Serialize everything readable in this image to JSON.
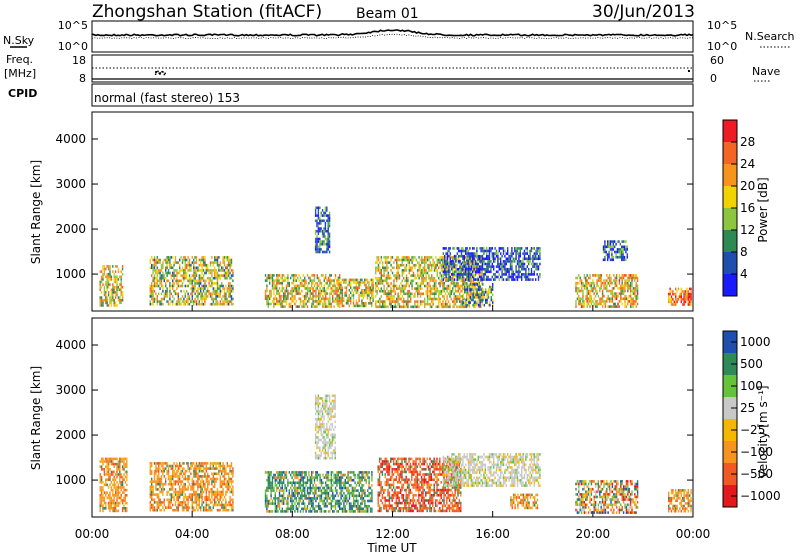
{
  "header": {
    "station": "Zhongshan Station (fitACF)",
    "beam": "Beam 01",
    "date": "30/Jun/2013"
  },
  "noise_panel": {
    "left_label": "N.Sky",
    "right_label": "N.Search",
    "ytick_top": "10^5",
    "ytick_bottom": "10^0"
  },
  "freq_panel": {
    "left_label_1": "Freq.",
    "left_label_2": "[MHz]",
    "right_label": "Nave",
    "left_ticks": [
      "18",
      "8"
    ],
    "right_ticks": [
      "60",
      "0"
    ]
  },
  "cpid_panel": {
    "label": "CPID",
    "mode_text": "normal (fast stereo) 153"
  },
  "colors": {
    "power_scale": [
      "#1a1aff",
      "#1f4fae",
      "#2d8a52",
      "#8cc63f",
      "#f2d200",
      "#f7941d",
      "#f26522",
      "#ed1c24"
    ],
    "velocity_scale": [
      "#e31a1c",
      "#f05a22",
      "#f7941d",
      "#f5b700",
      "#c8c8c8",
      "#66c23a",
      "#2f8a5a",
      "#1f4fae"
    ]
  },
  "chart_data": [
    {
      "type": "heatmap",
      "panel": "power",
      "ylabel": "Slant Range [km]",
      "ylim": [
        180,
        4600
      ],
      "yticks": [
        1000,
        2000,
        3000,
        4000
      ],
      "xlabel": "Time UT",
      "xlim_hours": [
        0,
        24
      ],
      "colorbar": {
        "label": "Power [dB]",
        "range": [
          0,
          32
        ],
        "ticks": [
          "4",
          "8",
          "12",
          "16",
          "20",
          "24",
          "28"
        ]
      },
      "echo_regions": [
        {
          "t": [
            0.3,
            1.2
          ],
          "r": [
            300,
            1200
          ],
          "level": 0.55
        },
        {
          "t": [
            2.3,
            5.6
          ],
          "r": [
            350,
            1400
          ],
          "level": 0.5
        },
        {
          "t": [
            6.9,
            9.9
          ],
          "r": [
            300,
            1000
          ],
          "level": 0.55
        },
        {
          "t": [
            8.9,
            9.5
          ],
          "r": [
            1500,
            2500
          ],
          "level": 0.2
        },
        {
          "t": [
            9.8,
            11.2
          ],
          "r": [
            300,
            900
          ],
          "level": 0.55
        },
        {
          "t": [
            11.3,
            15.6
          ],
          "r": [
            300,
            1400
          ],
          "level": 0.55
        },
        {
          "t": [
            14.0,
            17.9
          ],
          "r": [
            900,
            1600
          ],
          "level": 0.15
        },
        {
          "t": [
            14.8,
            16.0
          ],
          "r": [
            300,
            800
          ],
          "level": 0.35
        },
        {
          "t": [
            19.3,
            21.8
          ],
          "r": [
            300,
            1000
          ],
          "level": 0.6
        },
        {
          "t": [
            20.4,
            21.4
          ],
          "r": [
            1300,
            1750
          ],
          "level": 0.2
        },
        {
          "t": [
            23.0,
            23.9
          ],
          "r": [
            300,
            700
          ],
          "level": 0.8
        }
      ]
    },
    {
      "type": "heatmap",
      "panel": "velocity",
      "ylabel": "Slant Range [km]",
      "ylim": [
        180,
        4600
      ],
      "yticks": [
        1000,
        2000,
        3000,
        4000
      ],
      "xlabel": "Time UT",
      "xticks": [
        "00:00",
        "04:00",
        "08:00",
        "12:00",
        "16:00",
        "20:00",
        "00:00"
      ],
      "colorbar": {
        "label": "Velocity [m s⁻¹]",
        "ticks": [
          "1000",
          "500",
          "100",
          "25",
          "−25",
          "−100",
          "−500",
          "−1000"
        ]
      },
      "echo_regions": [
        {
          "t": [
            0.3,
            1.4
          ],
          "r": [
            300,
            1500
          ],
          "dominant": "negative"
        },
        {
          "t": [
            2.3,
            5.6
          ],
          "r": [
            350,
            1400
          ],
          "dominant": "negative"
        },
        {
          "t": [
            6.9,
            11.2
          ],
          "r": [
            300,
            1200
          ],
          "dominant": "positive"
        },
        {
          "t": [
            8.9,
            9.7
          ],
          "r": [
            1500,
            2900
          ],
          "dominant": "near-zero"
        },
        {
          "t": [
            11.4,
            14.7
          ],
          "r": [
            300,
            1500
          ],
          "dominant": "strong-negative"
        },
        {
          "t": [
            14.0,
            17.9
          ],
          "r": [
            900,
            1600
          ],
          "dominant": "near-zero"
        },
        {
          "t": [
            16.7,
            17.8
          ],
          "r": [
            400,
            700
          ],
          "dominant": "negative"
        },
        {
          "t": [
            19.3,
            21.8
          ],
          "r": [
            300,
            1000
          ],
          "dominant": "mixed"
        },
        {
          "t": [
            23.0,
            23.9
          ],
          "r": [
            300,
            800
          ],
          "dominant": "negative"
        }
      ]
    }
  ]
}
